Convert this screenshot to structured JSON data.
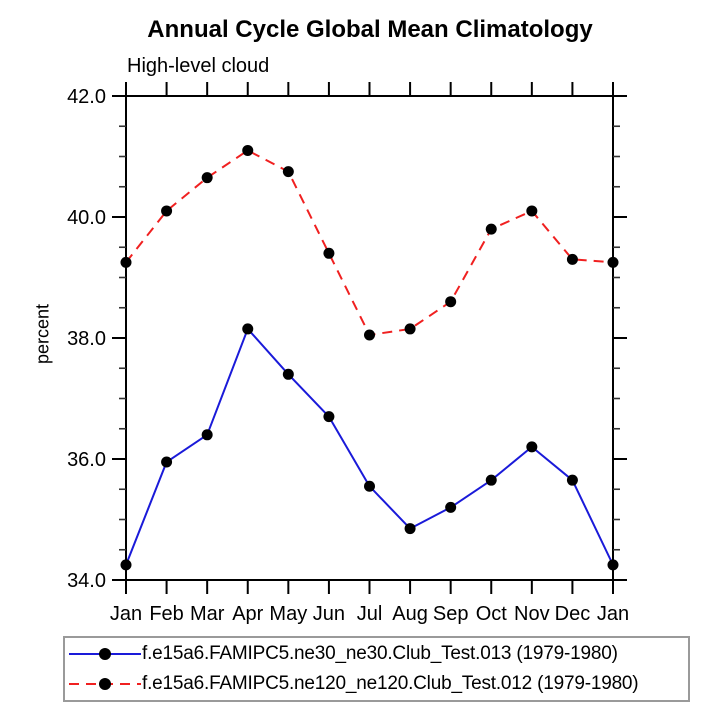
{
  "chart_data": {
    "type": "line",
    "title": "Annual Cycle Global Mean Climatology",
    "subtitle": "High-level cloud",
    "ylabel": "percent",
    "xlabel": "",
    "ylim": [
      34.0,
      42.0
    ],
    "y_major_step": 2.0,
    "y_minor_step": 0.5,
    "y_tick_labels": [
      "34.0",
      "36.0",
      "38.0",
      "40.0",
      "42.0"
    ],
    "grid": false,
    "legend_position": "bottom",
    "categories": [
      "Jan",
      "Feb",
      "Mar",
      "Apr",
      "May",
      "Jun",
      "Jul",
      "Aug",
      "Sep",
      "Oct",
      "Nov",
      "Dec",
      "Jan"
    ],
    "series": [
      {
        "name": "f.e15a6.FAMIPC5.ne30_ne30.Club_Test.013 (1979-1980)",
        "color": "#1a1ad9",
        "line_style": "solid",
        "line_width": 2,
        "marker": "circle",
        "marker_color": "#000000",
        "values": [
          34.25,
          35.95,
          36.4,
          38.15,
          37.4,
          36.7,
          35.55,
          34.85,
          35.2,
          35.65,
          36.2,
          35.65,
          34.25
        ]
      },
      {
        "name": "f.e15a6.FAMIPC5.ne120_ne120.Club_Test.012 (1979-1980)",
        "color": "#f02020",
        "line_style": "dashed",
        "line_width": 2,
        "marker": "circle",
        "marker_color": "#000000",
        "values": [
          39.25,
          40.1,
          40.65,
          41.1,
          40.75,
          39.4,
          38.05,
          38.15,
          38.6,
          39.8,
          40.1,
          39.3,
          39.25
        ]
      }
    ],
    "colors": {
      "axis": "#000000",
      "background": "#ffffff",
      "legend_border": "#9a9a9a",
      "text": "#000000"
    }
  }
}
